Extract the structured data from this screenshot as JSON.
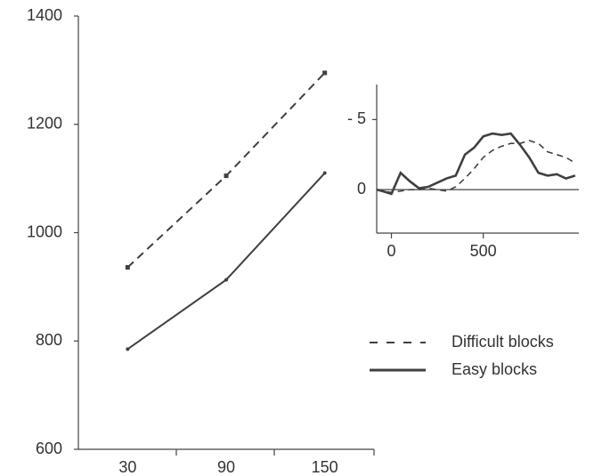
{
  "chart_data": [
    {
      "type": "line",
      "categories": [
        "30",
        "90",
        "150"
      ],
      "ylim": [
        600,
        1400
      ],
      "yticks": [
        600,
        800,
        1000,
        1200,
        1400
      ],
      "legend": "right",
      "series": [
        {
          "name": "Difficult blocks",
          "color": "#404040",
          "dashed": true,
          "marker": "square",
          "values": [
            936,
            1105,
            1295
          ]
        },
        {
          "name": "Easy blocks",
          "color": "#404040",
          "dashed": false,
          "marker": "dot",
          "values": [
            785,
            913,
            1110
          ]
        }
      ]
    },
    {
      "type": "line",
      "x": [
        -80,
        -50,
        0,
        50,
        100,
        150,
        200,
        250,
        300,
        350,
        400,
        450,
        500,
        550,
        600,
        650,
        700,
        750,
        800,
        850,
        900,
        950,
        1000
      ],
      "xlim": [
        -80,
        1020
      ],
      "xticks": [
        0,
        500
      ],
      "ylim": [
        3.1,
        -7.5
      ],
      "yticks": [
        {
          "value": -5,
          "label": "- 5"
        },
        0
      ],
      "series": [
        {
          "color": "#404040",
          "dashed": true,
          "values": [
            0,
            0.1,
            0.2,
            0.1,
            0,
            0,
            -0.1,
            0,
            0.1,
            -0.2,
            -0.8,
            -1.5,
            -2.3,
            -2.8,
            -3.1,
            -3.3,
            -3.3,
            -3.5,
            -3.3,
            -2.7,
            -2.5,
            -2.3,
            -1.9
          ]
        },
        {
          "color": "#404040",
          "dashed": false,
          "values": [
            0,
            0.1,
            0.3,
            -1.2,
            -0.6,
            -0.1,
            -0.2,
            -0.5,
            -0.8,
            -1,
            -2.5,
            -3,
            -3.8,
            -4,
            -3.9,
            -4,
            -3.2,
            -2.3,
            -1.2,
            -1,
            -1.1,
            -0.8,
            -1
          ]
        }
      ]
    }
  ]
}
